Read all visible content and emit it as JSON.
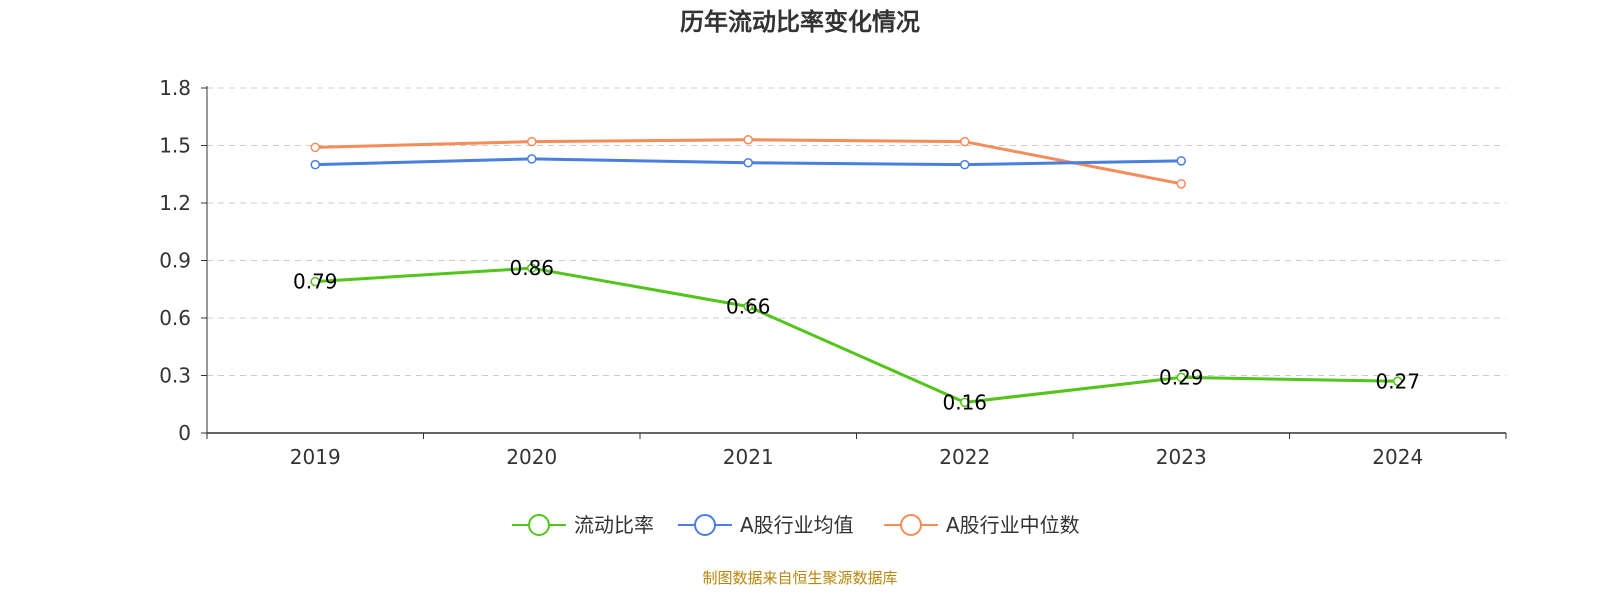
{
  "chart_data": {
    "type": "line",
    "title": "历年流动比率变化情况",
    "categories": [
      "2019",
      "2020",
      "2021",
      "2022",
      "2023",
      "2024"
    ],
    "y_ticks": [
      "0",
      "0.3",
      "0.6",
      "0.9",
      "1.2",
      "1.5",
      "1.8"
    ],
    "ylim": [
      0,
      1.8
    ],
    "grid": true,
    "legend_position": "bottom",
    "series": [
      {
        "name": "流动比率",
        "color": "#52c41a",
        "values": [
          0.79,
          0.86,
          0.66,
          0.16,
          0.29,
          0.27
        ],
        "labels": [
          "0.79",
          "0.86",
          "0.66",
          "0.16",
          "0.29",
          "0.27"
        ]
      },
      {
        "name": "A股行业均值",
        "color": "#4a7fe0",
        "values": [
          1.4,
          1.43,
          1.41,
          1.4,
          1.42,
          null
        ]
      },
      {
        "name": "A股行业中位数",
        "color": "#f58d5a",
        "values": [
          1.49,
          1.52,
          1.53,
          1.52,
          1.3,
          null
        ]
      }
    ],
    "source": "制图数据来自恒生聚源数据库"
  }
}
